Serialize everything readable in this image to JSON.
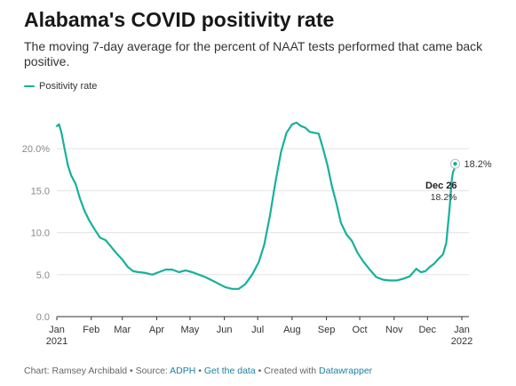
{
  "header": {
    "title": "Alabama's COVID positivity rate",
    "subtitle": "The moving 7-day average for the percent of NAAT tests performed that came back positive."
  },
  "legend": {
    "label": "Positivity rate",
    "color": "#17b19b"
  },
  "footer": {
    "prefix": "Chart: Ramsey Archibald • Source: ",
    "source_link": "ADPH",
    "sep1": " • ",
    "data_link": "Get the data",
    "sep2": " • Created with ",
    "dw_link": "Datawrapper",
    "link_color": "#1d81a2"
  },
  "chart_data": {
    "type": "line",
    "title": "Alabama's COVID positivity rate",
    "xlabel": "",
    "ylabel": "",
    "ylim": [
      0,
      25
    ],
    "y_ticks": [
      0,
      5,
      10,
      15,
      20
    ],
    "y_tick_labels": [
      "0.0",
      "5.0",
      "10.0",
      "15.0",
      "20.0%"
    ],
    "x_ticks": [
      {
        "date": "2021-01-01",
        "label": "Jan",
        "sublabel": "2021"
      },
      {
        "date": "2021-02-01",
        "label": "Feb"
      },
      {
        "date": "2021-03-01",
        "label": "Mar"
      },
      {
        "date": "2021-04-01",
        "label": "Apr"
      },
      {
        "date": "2021-05-01",
        "label": "May"
      },
      {
        "date": "2021-06-01",
        "label": "Jun"
      },
      {
        "date": "2021-07-01",
        "label": "Jul"
      },
      {
        "date": "2021-08-01",
        "label": "Aug"
      },
      {
        "date": "2021-09-01",
        "label": "Sep"
      },
      {
        "date": "2021-10-01",
        "label": "Oct"
      },
      {
        "date": "2021-11-01",
        "label": "Nov"
      },
      {
        "date": "2021-12-01",
        "label": "Dec"
      },
      {
        "date": "2022-01-01",
        "label": "Jan",
        "sublabel": "2022"
      }
    ],
    "grid": true,
    "legend_position": "top-left",
    "series": [
      {
        "name": "Positivity rate",
        "color": "#17b19b",
        "x": [
          "2021-01-01",
          "2021-01-03",
          "2021-01-05",
          "2021-01-08",
          "2021-01-11",
          "2021-01-14",
          "2021-01-18",
          "2021-01-22",
          "2021-01-26",
          "2021-01-30",
          "2021-02-04",
          "2021-02-09",
          "2021-02-14",
          "2021-02-19",
          "2021-02-24",
          "2021-03-01",
          "2021-03-06",
          "2021-03-11",
          "2021-03-16",
          "2021-03-22",
          "2021-03-28",
          "2021-04-03",
          "2021-04-09",
          "2021-04-15",
          "2021-04-21",
          "2021-04-27",
          "2021-05-03",
          "2021-05-09",
          "2021-05-15",
          "2021-05-21",
          "2021-05-27",
          "2021-06-02",
          "2021-06-08",
          "2021-06-14",
          "2021-06-20",
          "2021-06-26",
          "2021-07-02",
          "2021-07-07",
          "2021-07-12",
          "2021-07-17",
          "2021-07-22",
          "2021-07-27",
          "2021-08-01",
          "2021-08-05",
          "2021-08-09",
          "2021-08-13",
          "2021-08-17",
          "2021-08-21",
          "2021-08-25",
          "2021-08-29",
          "2021-09-02",
          "2021-09-06",
          "2021-09-10",
          "2021-09-14",
          "2021-09-19",
          "2021-09-24",
          "2021-09-29",
          "2021-10-04",
          "2021-10-10",
          "2021-10-16",
          "2021-10-22",
          "2021-10-28",
          "2021-11-03",
          "2021-11-09",
          "2021-11-15",
          "2021-11-21",
          "2021-11-25",
          "2021-11-29",
          "2021-12-03",
          "2021-12-07",
          "2021-12-11",
          "2021-12-15",
          "2021-12-18",
          "2021-12-21",
          "2021-12-23",
          "2021-12-24",
          "2021-12-25",
          "2021-12-26"
        ],
        "y": [
          22.7,
          22.9,
          22.0,
          20.0,
          18.0,
          16.8,
          15.8,
          14.0,
          12.6,
          11.5,
          10.4,
          9.4,
          9.1,
          8.3,
          7.5,
          6.8,
          5.9,
          5.4,
          5.3,
          5.2,
          5.0,
          5.3,
          5.6,
          5.6,
          5.3,
          5.5,
          5.3,
          5.0,
          4.7,
          4.3,
          3.9,
          3.5,
          3.3,
          3.3,
          3.9,
          5.0,
          6.5,
          8.6,
          12.0,
          16.0,
          19.6,
          21.9,
          22.9,
          23.1,
          22.7,
          22.5,
          22.0,
          21.9,
          21.8,
          20.0,
          18.0,
          15.5,
          13.5,
          11.2,
          9.8,
          9.0,
          7.6,
          6.6,
          5.6,
          4.7,
          4.4,
          4.3,
          4.3,
          4.5,
          4.8,
          5.7,
          5.3,
          5.4,
          5.9,
          6.3,
          6.9,
          7.4,
          8.8,
          13.0,
          16.4,
          17.2,
          17.5,
          18.2
        ]
      }
    ],
    "annotations": [
      {
        "date_label": "Dec 26",
        "value_label": "18.2%",
        "end_label": "18.2%",
        "date": "2021-12-26",
        "value": 18.2
      }
    ]
  }
}
